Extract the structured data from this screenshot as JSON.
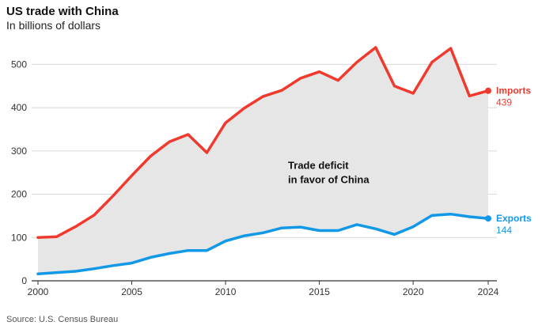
{
  "header": {
    "title": "US trade with China",
    "subtitle": "In billions of dollars"
  },
  "footer": {
    "source": "Source: U.S. Census Bureau"
  },
  "colors": {
    "imports": "#f03a2e",
    "exports": "#1199e8",
    "gap_fill": "#e6e6e6"
  },
  "chart_data": {
    "type": "area",
    "title": "US trade with China",
    "subtitle": "In billions of dollars",
    "xlabel": "",
    "ylabel": "",
    "xlim": [
      2000,
      2024
    ],
    "ylim": [
      0,
      550
    ],
    "x_ticks": [
      2000,
      2005,
      2010,
      2015,
      2020,
      2024
    ],
    "y_ticks": [
      0,
      100,
      200,
      300,
      400,
      500
    ],
    "grid": true,
    "legend": "direct-labels-right",
    "x": [
      2000,
      2001,
      2002,
      2003,
      2004,
      2005,
      2006,
      2007,
      2008,
      2009,
      2010,
      2011,
      2012,
      2013,
      2014,
      2015,
      2016,
      2017,
      2018,
      2019,
      2020,
      2021,
      2022,
      2023,
      2024
    ],
    "series": [
      {
        "name": "Imports",
        "end_label": "439",
        "values": [
          100,
          102,
          125,
          152,
          196,
          243,
          288,
          321,
          338,
          296,
          365,
          399,
          426,
          440,
          468,
          483,
          463,
          505,
          539,
          450,
          433,
          505,
          537,
          427,
          439
        ]
      },
      {
        "name": "Exports",
        "end_label": "144",
        "values": [
          16,
          19,
          22,
          28,
          35,
          41,
          54,
          63,
          70,
          70,
          92,
          104,
          111,
          122,
          124,
          116,
          116,
          130,
          120,
          107,
          125,
          151,
          154,
          148,
          144
        ]
      }
    ],
    "annotations": [
      {
        "lines": [
          "Trade deficit",
          "in favor of China"
        ],
        "x": 2017,
        "y": 240
      }
    ]
  }
}
